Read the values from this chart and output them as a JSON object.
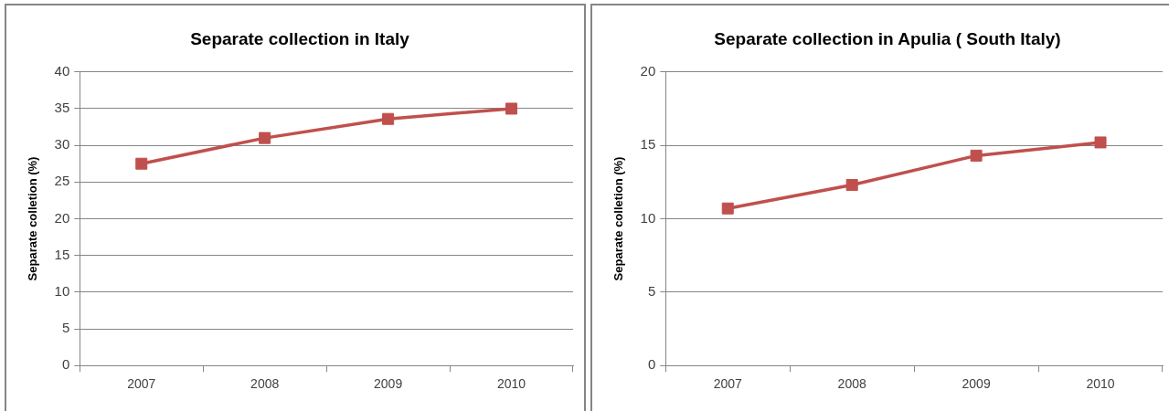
{
  "chart_data": [
    {
      "type": "line",
      "title": "Separate collection in Italy",
      "ylabel": "Separate colletion (%)",
      "categories": [
        "2007",
        "2008",
        "2009",
        "2010"
      ],
      "series": [
        {
          "color": "#c0504d",
          "values": [
            27.5,
            31.0,
            33.6,
            35.0
          ]
        }
      ],
      "ylim": [
        0,
        40
      ],
      "yticks": [
        0,
        5,
        10,
        15,
        20,
        25,
        30,
        35,
        40
      ],
      "grid": "y",
      "legend": false,
      "marker": "square"
    },
    {
      "type": "line",
      "title": "Separate collection in Apulia ( South Italy)",
      "ylabel": "Separate colletion (%)",
      "categories": [
        "2007",
        "2008",
        "2009",
        "2010"
      ],
      "series": [
        {
          "color": "#c0504d",
          "values": [
            10.7,
            12.3,
            14.3,
            15.2
          ]
        }
      ],
      "ylim": [
        0,
        20
      ],
      "yticks": [
        0,
        5,
        10,
        15,
        20
      ],
      "grid": "y",
      "legend": false,
      "marker": "square"
    }
  ]
}
